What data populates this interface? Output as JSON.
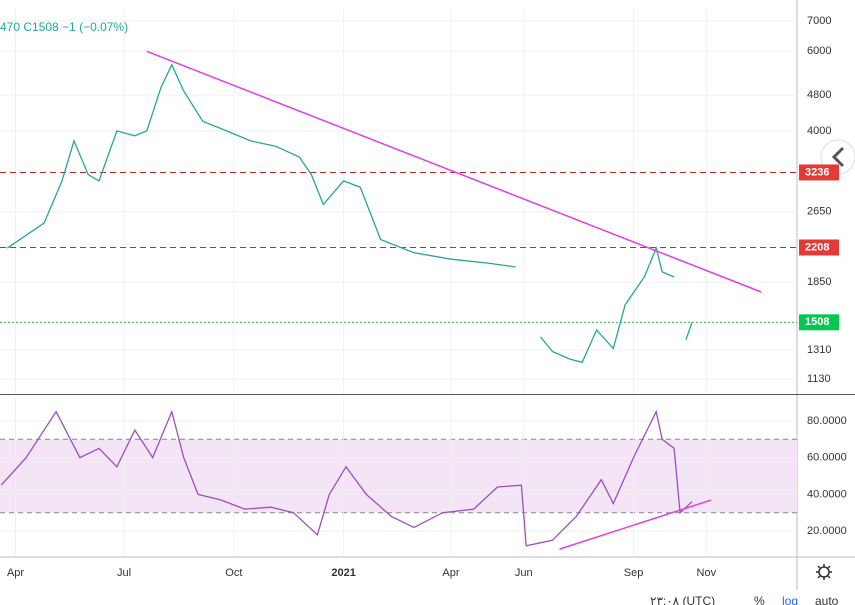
{
  "status_line": "470  C1508  −1 (−0.07%)",
  "footer": {
    "time": "۲۳:۰۸ (UTC)",
    "percent": "%",
    "log": "log",
    "auto": "auto"
  },
  "chart_data": [
    {
      "type": "line",
      "log_scale": true,
      "grid": true,
      "xlim": [
        "2020-03-19",
        "2022-01-16"
      ],
      "ylim": [
        1052,
        7480
      ],
      "yticks": [
        1130,
        1310,
        1850,
        2650,
        4000,
        4800,
        6000,
        7000
      ],
      "levels": [
        {
          "value": 3236,
          "color": "#c62828",
          "label_color": "#e53935"
        },
        {
          "value": 2208,
          "color": "#c62828",
          "label_color": "#e53935"
        },
        {
          "value": 1508,
          "color": "#4caf50",
          "label_color": "#00c853"
        }
      ],
      "x": [
        "2020-03-25",
        "2020-04-10",
        "2020-04-25",
        "2020-05-10",
        "2020-05-20",
        "2020-06-01",
        "2020-06-10",
        "2020-06-25",
        "2020-07-10",
        "2020-07-20",
        "2020-08-01",
        "2020-08-10",
        "2020-08-20",
        "2020-09-05",
        "2020-09-25",
        "2020-10-15",
        "2020-11-05",
        "2020-11-25",
        "2020-12-05",
        "2020-12-15",
        "2021-01-01",
        "2021-01-15",
        "2021-02-01",
        "2021-03-01",
        "2021-04-01",
        "2021-05-01",
        "2021-05-25",
        "2021-06-05",
        "2021-06-15",
        "2021-06-25",
        "2021-07-10",
        "2021-07-20",
        "2021-08-01",
        "2021-08-15",
        "2021-08-25",
        "2021-09-10",
        "2021-09-20",
        "2021-09-25",
        "2021-10-05",
        "2021-10-10",
        "2021-10-15",
        "2021-10-20"
      ],
      "series": [
        {
          "color": "#26a69a",
          "values": [
            2200,
            2350,
            2500,
            3100,
            3800,
            3200,
            3100,
            4000,
            3900,
            4000,
            5000,
            5600,
            4900,
            4200,
            4000,
            3800,
            3700,
            3500,
            3200,
            2750,
            3100,
            3000,
            2300,
            2150,
            2080,
            2040,
            2000,
            null,
            1400,
            1300,
            1250,
            1230,
            1450,
            1320,
            1650,
            1900,
            2200,
            1950,
            1900,
            null,
            1380,
            1508
          ]
        }
      ],
      "trend_lines": [
        {
          "x": [
            "2020-07-20",
            "2021-12-17"
          ],
          "y": [
            6000,
            1760
          ],
          "color": "#e040e0"
        }
      ]
    },
    {
      "type": "line",
      "grid": true,
      "xlim": [
        "2020-03-19",
        "2022-01-16"
      ],
      "ylim": [
        7,
        93
      ],
      "yticks": [
        {
          "value": 20,
          "label": "20.0000"
        },
        {
          "value": 40,
          "label": "40.0000"
        },
        {
          "value": 60,
          "label": "60.0000"
        },
        {
          "value": 80,
          "label": "80.0000"
        }
      ],
      "xticks": [
        {
          "value": "2020-04-01",
          "label": "Apr"
        },
        {
          "value": "2020-07-01",
          "label": "Jul"
        },
        {
          "value": "2020-10-01",
          "label": "Oct"
        },
        {
          "value": "2021-01-01",
          "label": "2021"
        },
        {
          "value": "2021-04-01",
          "label": "Apr"
        },
        {
          "value": "2021-06-01",
          "label": "Jun"
        },
        {
          "value": "2021-09-01",
          "label": "Sep"
        },
        {
          "value": "2021-11-01",
          "label": "Nov"
        }
      ],
      "band": [
        30,
        70
      ],
      "band_color": "#f3e5f5",
      "x": [
        "2020-03-20",
        "2020-04-10",
        "2020-05-05",
        "2020-05-25",
        "2020-06-10",
        "2020-06-25",
        "2020-07-10",
        "2020-07-25",
        "2020-08-10",
        "2020-08-20",
        "2020-09-01",
        "2020-09-20",
        "2020-10-10",
        "2020-11-01",
        "2020-11-20",
        "2020-12-10",
        "2020-12-20",
        "2021-01-03",
        "2021-01-20",
        "2021-02-10",
        "2021-03-01",
        "2021-03-25",
        "2021-04-20",
        "2021-05-10",
        "2021-05-30",
        "2021-06-03",
        "2021-06-25",
        "2021-07-15",
        "2021-08-05",
        "2021-08-15",
        "2021-09-01",
        "2021-09-20",
        "2021-09-25",
        "2021-10-05",
        "2021-10-10",
        "2021-10-20"
      ],
      "series": [
        {
          "color": "#9c4fc0",
          "values": [
            45,
            60,
            85,
            60,
            65,
            55,
            75,
            60,
            85,
            60,
            40,
            37,
            32,
            33,
            30,
            18,
            40,
            55,
            40,
            28,
            22,
            30,
            32,
            44,
            45,
            12,
            15,
            28,
            48,
            35,
            60,
            85,
            70,
            65,
            30,
            36
          ]
        }
      ],
      "trend_lines": [
        {
          "x": [
            "2021-07-01",
            "2021-11-05"
          ],
          "y": [
            10.2,
            36.9
          ],
          "color": "#e040e0"
        }
      ]
    }
  ]
}
